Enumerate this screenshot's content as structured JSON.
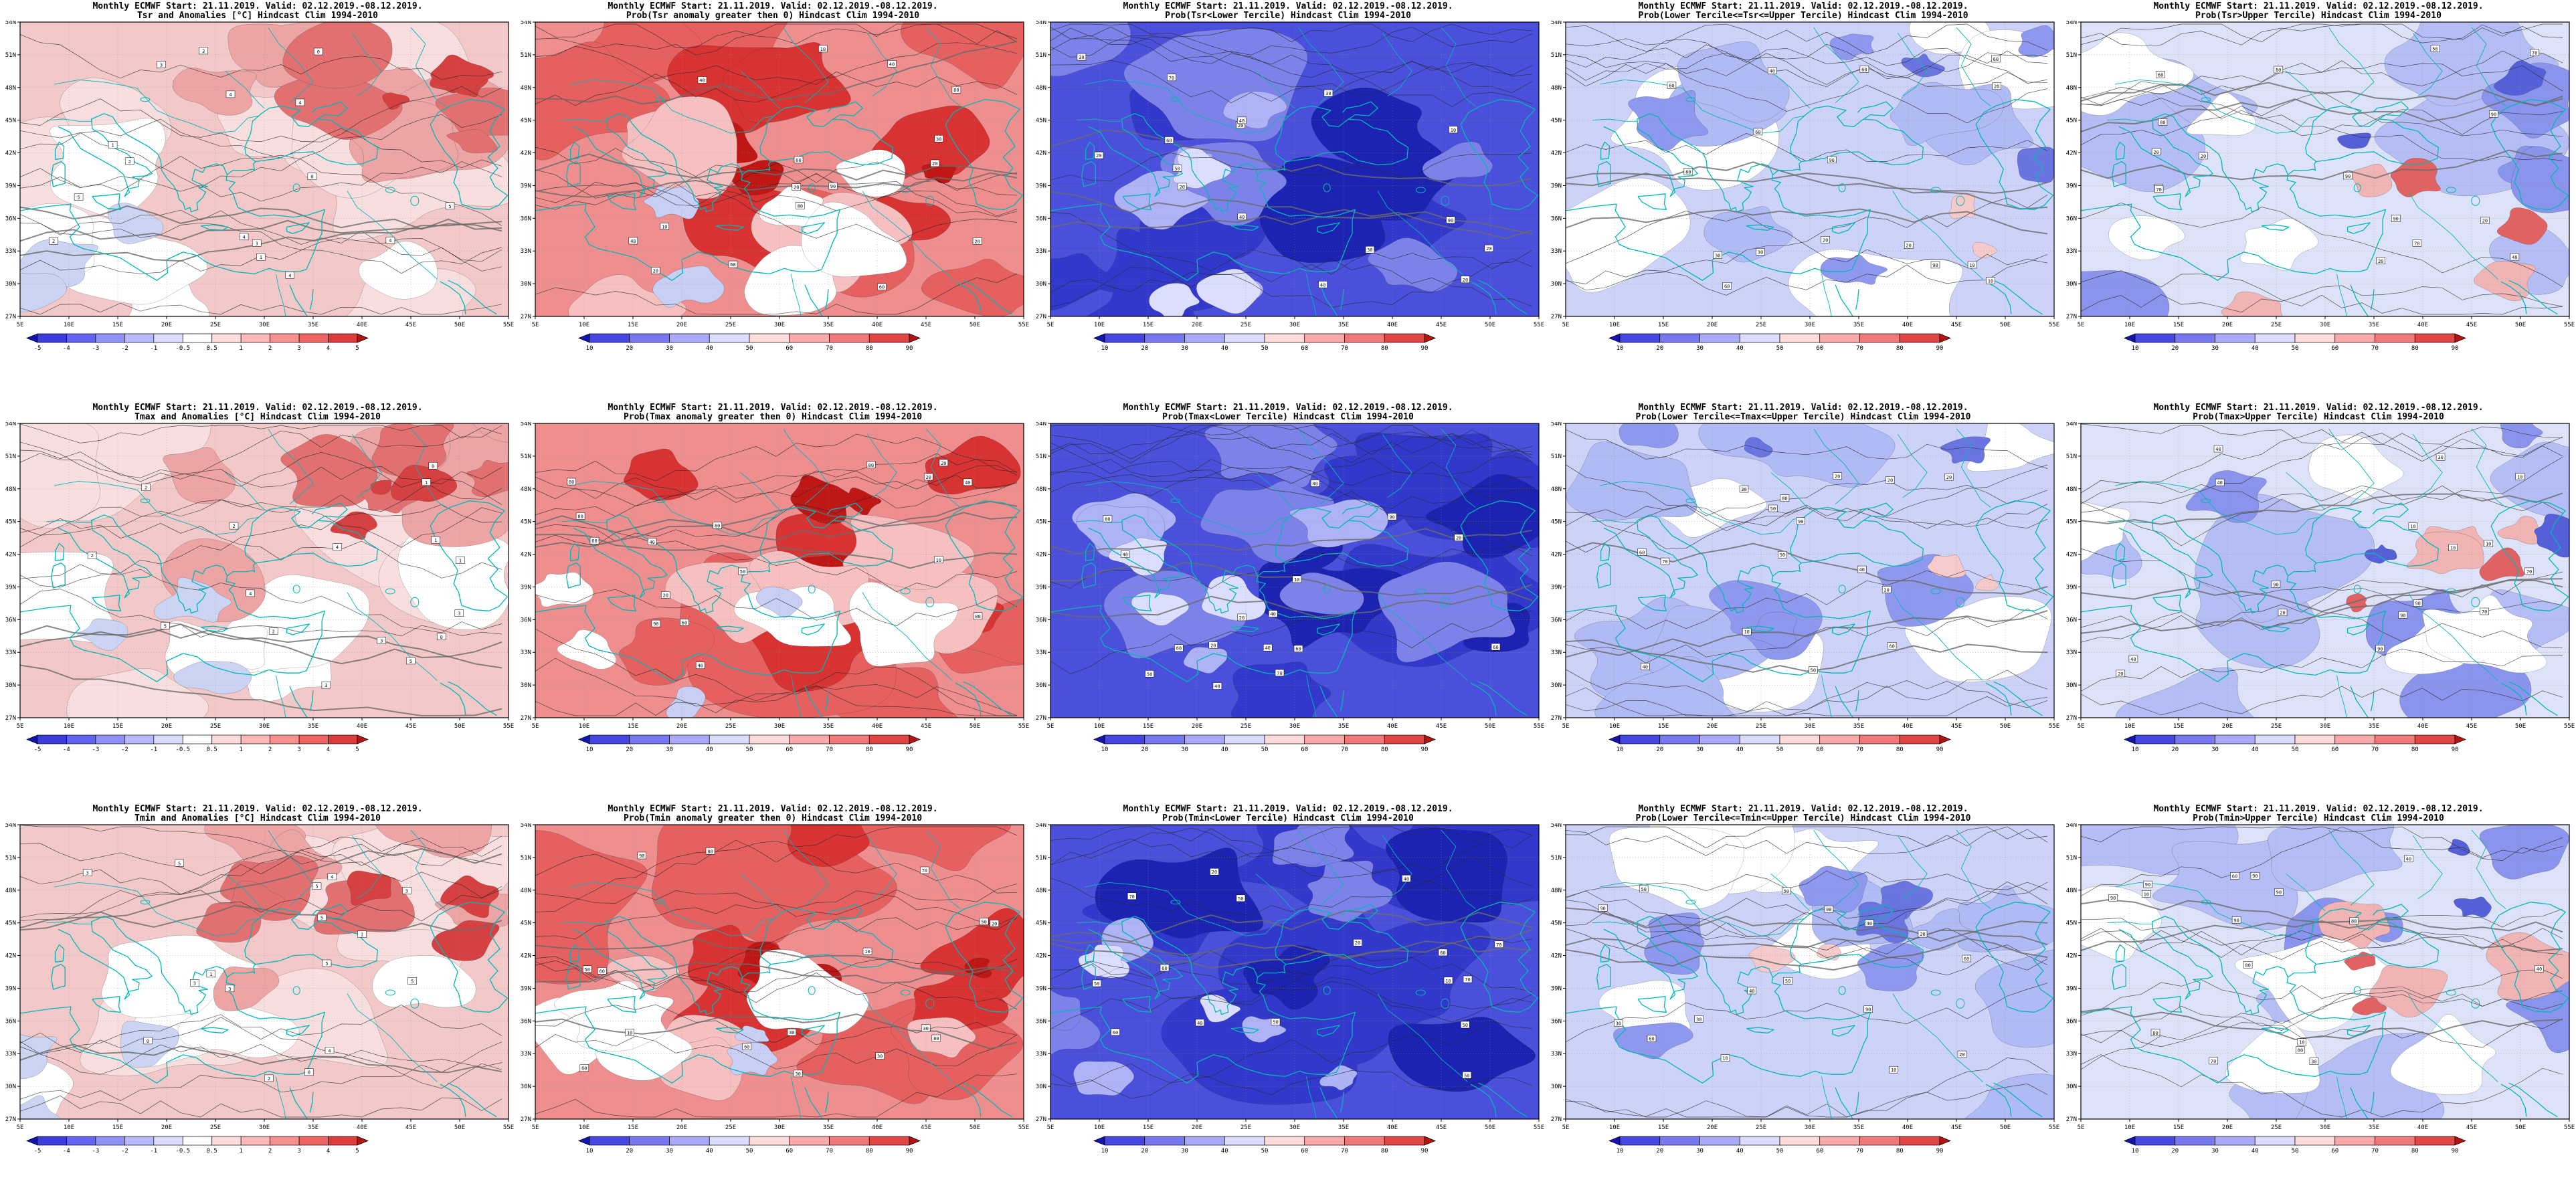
{
  "page": {
    "product": "Monthly ECMWF",
    "start_date": "21.11.2019.",
    "valid_range": "02.12.2019.-08.12.2019.",
    "hindcast_climatology": "1994-2010"
  },
  "axes": {
    "x_ticks": [
      "5E",
      "10E",
      "15E",
      "20E",
      "25E",
      "30E",
      "35E",
      "40E",
      "45E",
      "50E",
      "55E"
    ],
    "y_ticks": [
      "54N",
      "51N",
      "48N",
      "45N",
      "42N",
      "39N",
      "36N",
      "33N",
      "30N",
      "27N"
    ]
  },
  "colors": {
    "coastline": "#00b8b8",
    "background": "#ffffff",
    "frame": "#000000"
  },
  "colorbars": {
    "anomaly": {
      "labels": [
        "-5",
        "-4",
        "-3",
        "-2",
        "-1",
        "-0.5",
        "0.5",
        "1",
        "2",
        "3",
        "4",
        "5"
      ],
      "colors": [
        "#1414b4",
        "#3c3cdc",
        "#6464f0",
        "#9090f8",
        "#b8b8fc",
        "#dcdcff",
        "#ffffff",
        "#ffdcdc",
        "#fcb8b8",
        "#f89090",
        "#f06464",
        "#dc3c3c",
        "#b41414"
      ]
    },
    "probability": {
      "labels": [
        "10",
        "20",
        "30",
        "40",
        "50",
        "60",
        "70",
        "80",
        "90"
      ],
      "colors": [
        "#1414b4",
        "#4646e0",
        "#7878f0",
        "#aaaaf8",
        "#dcdcff",
        "#ffdcdc",
        "#f8aaaa",
        "#f07878",
        "#e04646",
        "#b41414"
      ]
    }
  },
  "panels": [
    {
      "row": 1,
      "col": 1,
      "variable": "Tsr",
      "title1": "Monthly ECMWF Start: 21.11.2019. Valid: 02.12.2019.-08.12.2019.",
      "title2": "Tsr and Anomalies [°C] Hindcast Clim 1994-2010",
      "colorbar": "anomaly",
      "style": "anomaly"
    },
    {
      "row": 1,
      "col": 2,
      "variable": "Tsr",
      "title1": "Monthly ECMWF Start: 21.11.2019. Valid: 02.12.2019.-08.12.2019.",
      "title2": "Prob(Tsr anomaly greater then 0) Hindcast Clim 1994-2010",
      "colorbar": "probability",
      "style": "prob_above_zero"
    },
    {
      "row": 1,
      "col": 3,
      "variable": "Tsr",
      "title1": "Monthly ECMWF Start: 21.11.2019. Valid: 02.12.2019.-08.12.2019.",
      "title2": "Prob(Tsr<Lower Tercile) Hindcast Clim 1994-2010",
      "colorbar": "probability",
      "style": "prob_below_lower"
    },
    {
      "row": 1,
      "col": 4,
      "variable": "Tsr",
      "title1": "Monthly ECMWF Start: 21.11.2019. Valid: 02.12.2019.-08.12.2019.",
      "title2": "Prob(Lower Tercile<=Tsr<=Upper Tercile) Hindcast Clim 1994-2010",
      "colorbar": "probability",
      "style": "prob_middle"
    },
    {
      "row": 1,
      "col": 5,
      "variable": "Tsr",
      "title1": "Monthly ECMWF Start: 21.11.2019. Valid: 02.12.2019.-08.12.2019.",
      "title2": "Prob(Tsr>Upper Tercile) Hindcast Clim 1994-2010",
      "colorbar": "probability",
      "style": "prob_above_upper"
    },
    {
      "row": 2,
      "col": 1,
      "variable": "Tmax",
      "title1": "Monthly ECMWF Start: 21.11.2019. Valid: 02.12.2019.-08.12.2019.",
      "title2": "Tmax and Anomalies [°C] Hindcast Clim 1994-2010",
      "colorbar": "anomaly",
      "style": "anomaly"
    },
    {
      "row": 2,
      "col": 2,
      "variable": "Tmax",
      "title1": "Monthly ECMWF Start: 21.11.2019. Valid: 02.12.2019.-08.12.2019.",
      "title2": "Prob(Tmax anomaly greater then 0) Hindcast Clim 1994-2010",
      "colorbar": "probability",
      "style": "prob_above_zero"
    },
    {
      "row": 2,
      "col": 3,
      "variable": "Tmax",
      "title1": "Monthly ECMWF Start: 21.11.2019. Valid: 02.12.2019.-08.12.2019.",
      "title2": "Prob(Tmax<Lower Tercile) Hindcast Clim 1994-2010",
      "colorbar": "probability",
      "style": "prob_below_lower"
    },
    {
      "row": 2,
      "col": 4,
      "variable": "Tmax",
      "title1": "Monthly ECMWF Start: 21.11.2019. Valid: 02.12.2019.-08.12.2019.",
      "title2": "Prob(Lower Tercile<=Tmax<=Upper Tercile) Hindcast Clim 1994-2010",
      "colorbar": "probability",
      "style": "prob_middle"
    },
    {
      "row": 2,
      "col": 5,
      "variable": "Tmax",
      "title1": "Monthly ECMWF Start: 21.11.2019. Valid: 02.12.2019.-08.12.2019.",
      "title2": "Prob(Tmax>Upper Tercile) Hindcast Clim 1994-2010",
      "colorbar": "probability",
      "style": "prob_above_upper"
    },
    {
      "row": 3,
      "col": 1,
      "variable": "Tmin",
      "title1": "Monthly ECMWF Start: 21.11.2019. Valid: 02.12.2019.-08.12.2019.",
      "title2": "Tmin and Anomalies [°C] Hindcast Clim 1994-2010",
      "colorbar": "anomaly",
      "style": "anomaly"
    },
    {
      "row": 3,
      "col": 2,
      "variable": "Tmin",
      "title1": "Monthly ECMWF Start: 21.11.2019. Valid: 02.12.2019.-08.12.2019.",
      "title2": "Prob(Tmin anomaly greater then 0) Hindcast Clim 1994-2010",
      "colorbar": "probability",
      "style": "prob_above_zero"
    },
    {
      "row": 3,
      "col": 3,
      "variable": "Tmin",
      "title1": "Monthly ECMWF Start: 21.11.2019. Valid: 02.12.2019.-08.12.2019.",
      "title2": "Prob(Tmin<Lower Tercile) Hindcast Clim 1994-2010",
      "colorbar": "probability",
      "style": "prob_below_lower"
    },
    {
      "row": 3,
      "col": 4,
      "variable": "Tmin",
      "title1": "Monthly ECMWF Start: 21.11.2019. Valid: 02.12.2019.-08.12.2019.",
      "title2": "Prob(Lower Tercile<=Tmin<=Upper Tercile) Hindcast Clim 1994-2010",
      "colorbar": "probability",
      "style": "prob_middle"
    },
    {
      "row": 3,
      "col": 5,
      "variable": "Tmin",
      "title1": "Monthly ECMWF Start: 21.11.2019. Valid: 02.12.2019.-08.12.2019.",
      "title2": "Prob(Tmin>Upper Tercile) Hindcast Clim 1994-2010",
      "colorbar": "probability",
      "style": "prob_above_upper"
    }
  ]
}
